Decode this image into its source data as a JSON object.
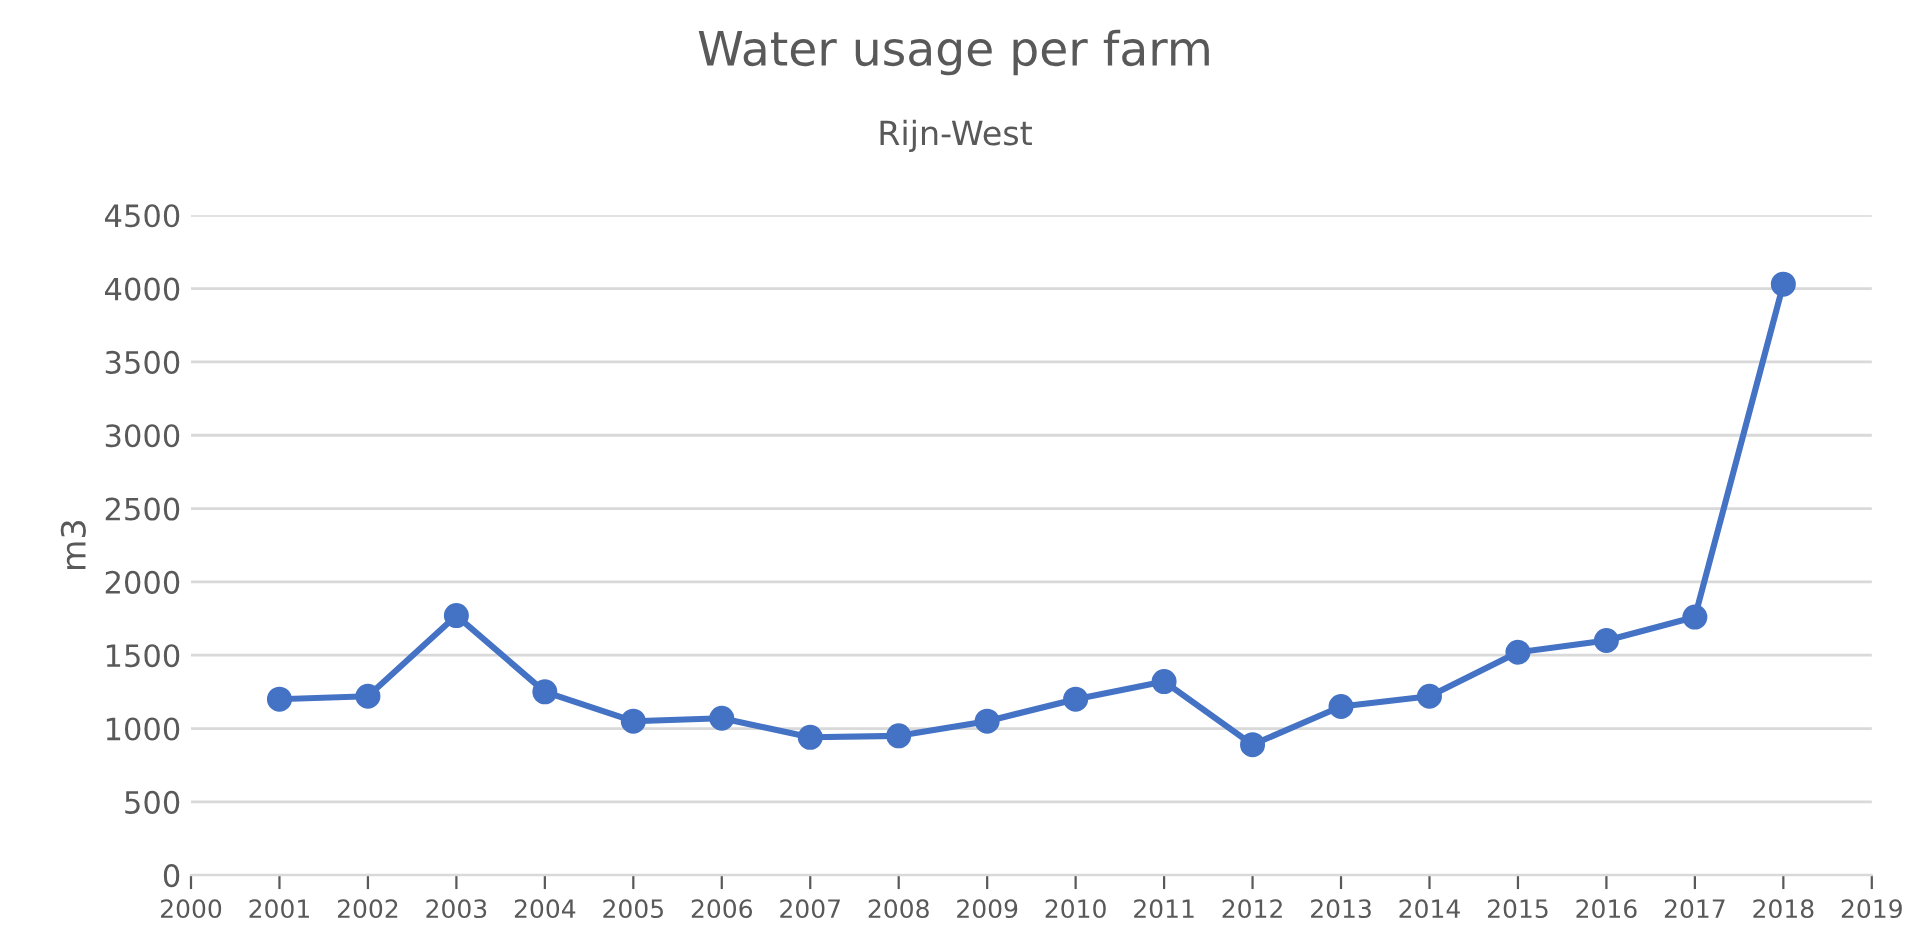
{
  "chart_data": {
    "type": "line",
    "title": "Water usage per farm",
    "subtitle": "Rijn-West",
    "ylabel": "m3",
    "x": [
      2001,
      2002,
      2003,
      2004,
      2005,
      2006,
      2007,
      2008,
      2009,
      2010,
      2011,
      2012,
      2013,
      2014,
      2015,
      2016,
      2017,
      2018
    ],
    "series": [
      {
        "color": "#4472c4",
        "values": [
          1200,
          1220,
          1770,
          1250,
          1050,
          1070,
          940,
          950,
          1050,
          1200,
          1320,
          890,
          1150,
          1220,
          1520,
          1600,
          1760,
          4030
        ]
      }
    ],
    "xlim": [
      2000,
      2019
    ],
    "xticks": [
      2000,
      2001,
      2002,
      2003,
      2004,
      2005,
      2006,
      2007,
      2008,
      2009,
      2010,
      2011,
      2012,
      2013,
      2014,
      2015,
      2016,
      2017,
      2018,
      2019
    ],
    "ylim": [
      0,
      4500
    ],
    "yticks": [
      0,
      500,
      1000,
      1500,
      2000,
      2500,
      3000,
      3500,
      4000,
      4500
    ],
    "grid": "y",
    "marker": "circle",
    "line_style": "solid",
    "legend": false
  }
}
